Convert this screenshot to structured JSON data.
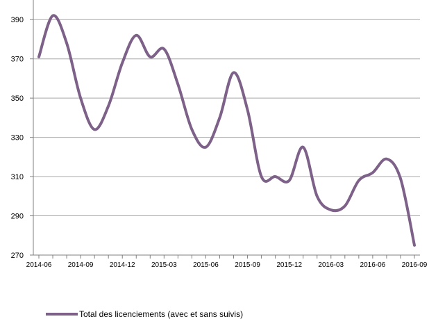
{
  "chart_data": {
    "type": "line",
    "x": [
      "2014-06",
      "2014-07",
      "2014-08",
      "2014-09",
      "2014-10",
      "2014-11",
      "2014-12",
      "2015-01",
      "2015-02",
      "2015-03",
      "2015-04",
      "2015-05",
      "2015-06",
      "2015-07",
      "2015-08",
      "2015-09",
      "2015-10",
      "2015-11",
      "2015-12",
      "2016-01",
      "2016-02",
      "2016-03",
      "2016-04",
      "2016-05",
      "2016-06",
      "2016-07",
      "2016-08",
      "2016-09"
    ],
    "series": [
      {
        "name": "Total des licenciements (avec et sans suivis)",
        "values": [
          371,
          392,
          378,
          350,
          334,
          346,
          368,
          382,
          371,
          375,
          357,
          334,
          325,
          340,
          363,
          344,
          310,
          310,
          308,
          325,
          300,
          293,
          295,
          308,
          312,
          319,
          309,
          275
        ]
      }
    ],
    "x_tick_labels": [
      "2014-06",
      "2014-09",
      "2014-12",
      "2015-03",
      "2015-06",
      "2015-09",
      "2015-12",
      "2016-03",
      "2016-06",
      "2016-09"
    ],
    "y_ticks": [
      270,
      290,
      310,
      330,
      350,
      370,
      390
    ],
    "ylim": [
      270,
      400
    ],
    "grid": "horizontal",
    "legend_position": "bottom",
    "colors": {
      "line": "#7d6188",
      "grid": "#a6a6a6",
      "axis": "#7f7f7f"
    }
  }
}
